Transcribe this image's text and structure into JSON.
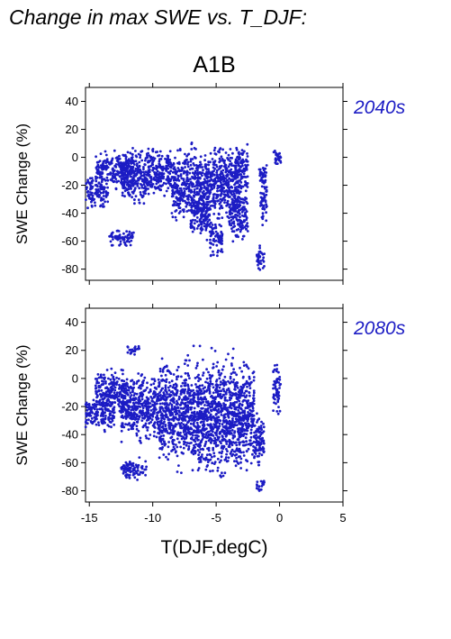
{
  "figure": {
    "title": "Change in max SWE vs. T_DJF:",
    "scenario": "A1B",
    "xlabel": "T(DJF,degC)",
    "point_color": "#1c1cc4"
  },
  "chart_data": [
    {
      "type": "scatter",
      "panel_label": "2040s",
      "xlabel": "T(DJF,degC)",
      "ylabel": "SWE Change (%)",
      "xlim": [
        -15.3,
        5
      ],
      "ylim": [
        -88,
        50
      ],
      "xticks": [
        -15,
        -10,
        -5,
        0,
        5
      ],
      "yticks": [
        40,
        20,
        0,
        -20,
        -40,
        -60,
        -80
      ],
      "grid": false,
      "clusters": [
        {
          "x": [
            -15.3,
            -13.5
          ],
          "y": [
            -40,
            -10
          ]
        },
        {
          "x": [
            -14.5,
            -11.5
          ],
          "y": [
            -25,
            8
          ]
        },
        {
          "x": [
            -13.5,
            -11.5
          ],
          "y": [
            -65,
            -50
          ]
        },
        {
          "x": [
            -12.5,
            -10.5
          ],
          "y": [
            -40,
            10
          ]
        },
        {
          "x": [
            -10.5,
            -8.5
          ],
          "y": [
            -35,
            12
          ]
        },
        {
          "x": [
            -8.5,
            -5.5
          ],
          "y": [
            -55,
            15
          ]
        },
        {
          "x": [
            -7,
            -5.5
          ],
          "y": [
            -62,
            -20
          ]
        },
        {
          "x": [
            -5.5,
            -4.5
          ],
          "y": [
            -75,
            -40
          ]
        },
        {
          "x": [
            -5.5,
            -3
          ],
          "y": [
            -50,
            15
          ]
        },
        {
          "x": [
            -4,
            -2.5
          ],
          "y": [
            -65,
            -20
          ]
        },
        {
          "x": [
            -3.5,
            -2.5
          ],
          "y": [
            -30,
            14
          ]
        },
        {
          "x": [
            -1.8,
            -1.2
          ],
          "y": [
            -84,
            -60
          ]
        },
        {
          "x": [
            -1.5,
            -1
          ],
          "y": [
            -55,
            -10
          ]
        },
        {
          "x": [
            -1.6,
            -1
          ],
          "y": [
            -25,
            0
          ]
        },
        {
          "x": [
            -0.5,
            0.1
          ],
          "y": [
            -10,
            9
          ]
        }
      ]
    },
    {
      "type": "scatter",
      "panel_label": "2080s",
      "xlabel": "T(DJF,degC)",
      "ylabel": "SWE Change (%)",
      "xlim": [
        -15.3,
        5
      ],
      "ylim": [
        -88,
        50
      ],
      "xticks": [
        -15,
        -10,
        -5,
        0,
        5
      ],
      "yticks": [
        40,
        20,
        0,
        -20,
        -40,
        -60,
        -80
      ],
      "grid": false,
      "clusters": [
        {
          "x": [
            -15.3,
            -13
          ],
          "y": [
            -40,
            -10
          ]
        },
        {
          "x": [
            -14.5,
            -12
          ],
          "y": [
            -30,
            10
          ]
        },
        {
          "x": [
            -12,
            -11
          ],
          "y": [
            15,
            25
          ]
        },
        {
          "x": [
            -12.5,
            -10.5
          ],
          "y": [
            -75,
            -55
          ]
        },
        {
          "x": [
            -12.5,
            -9.5
          ],
          "y": [
            -50,
            10
          ]
        },
        {
          "x": [
            -9.5,
            -7
          ],
          "y": [
            -70,
            22
          ]
        },
        {
          "x": [
            -7,
            -5.5
          ],
          "y": [
            -80,
            25
          ]
        },
        {
          "x": [
            -5.5,
            -3
          ],
          "y": [
            -80,
            27
          ]
        },
        {
          "x": [
            -3,
            -2
          ],
          "y": [
            -70,
            20
          ]
        },
        {
          "x": [
            -2,
            -1.2
          ],
          "y": [
            -70,
            -20
          ]
        },
        {
          "x": [
            -1.8,
            -1.2
          ],
          "y": [
            -83,
            -70
          ]
        },
        {
          "x": [
            -0.5,
            0.1
          ],
          "y": [
            -30,
            15
          ]
        }
      ]
    }
  ]
}
